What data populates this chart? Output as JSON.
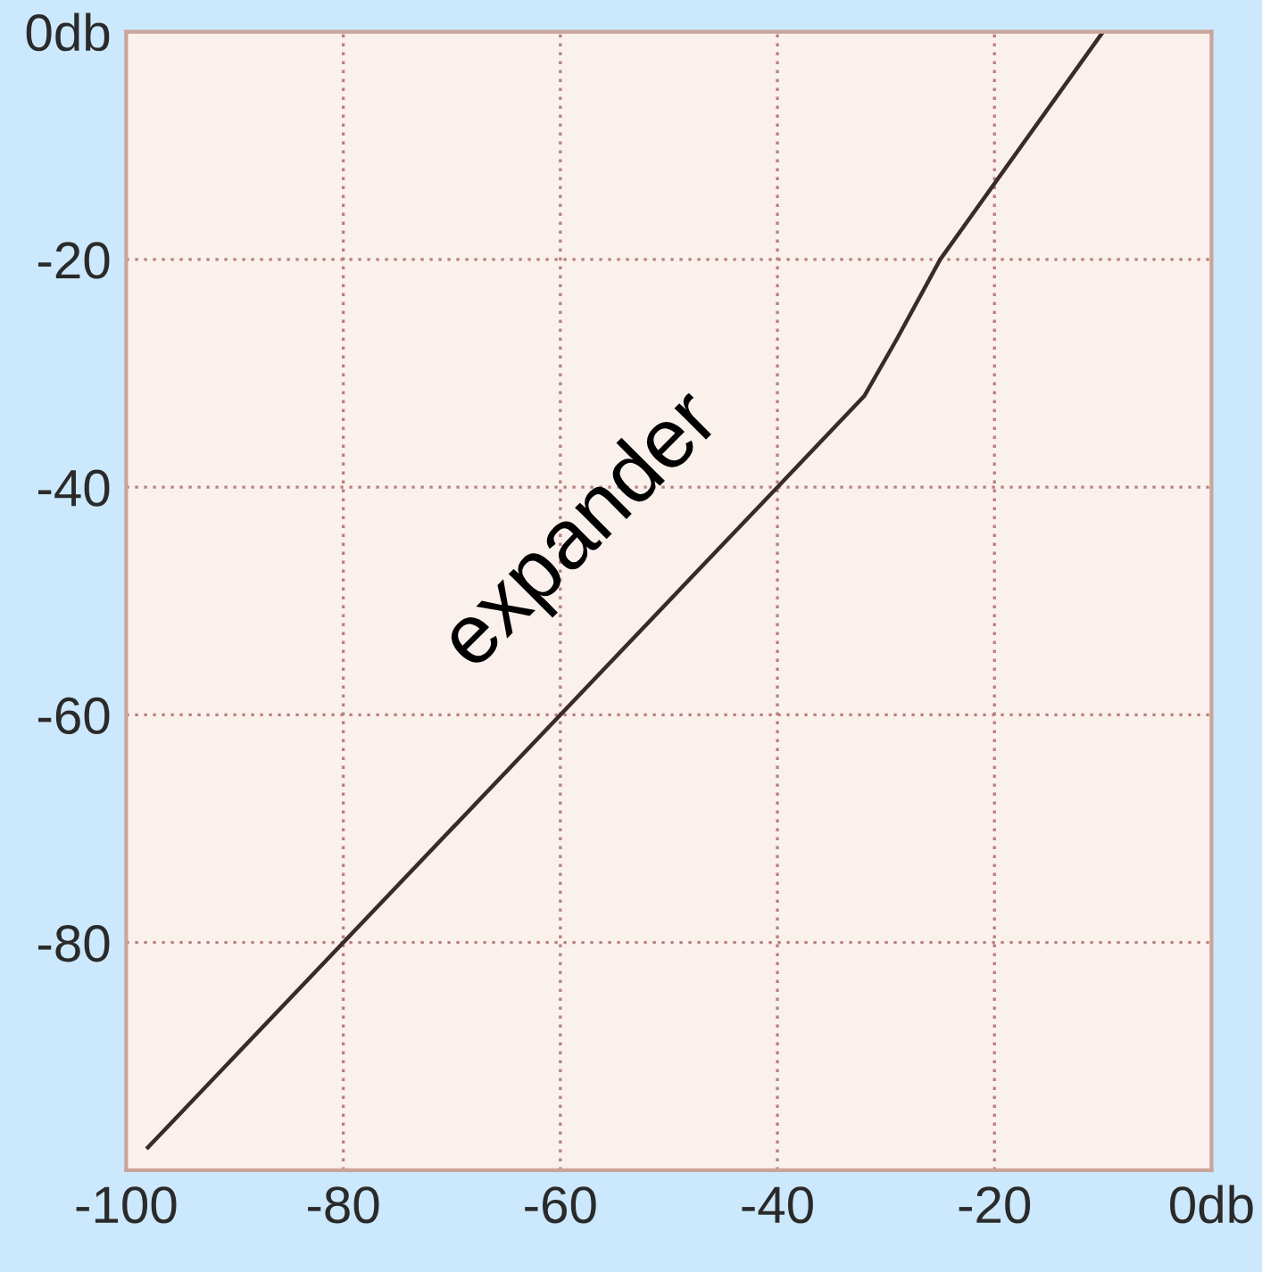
{
  "chart_data": {
    "type": "line",
    "x": [
      -98,
      -40,
      -32,
      -29,
      -25,
      -10
    ],
    "series": [
      {
        "color": "#3a2a2a",
        "values": [
          -98,
          -40,
          -32,
          -27,
          -20,
          0
        ]
      }
    ],
    "xlim": [
      -100,
      0
    ],
    "ylim": [
      -100,
      0
    ],
    "xticks": [
      -100,
      -80,
      -60,
      -40,
      -20,
      {
        "value": 0,
        "label": "0db"
      }
    ],
    "yticks": [
      {
        "value": 0,
        "label": "0db"
      },
      -20,
      -40,
      -60,
      -80
    ],
    "grid": true,
    "marker": "none",
    "line_style": "solid",
    "annotations": [
      "expander"
    ]
  }
}
